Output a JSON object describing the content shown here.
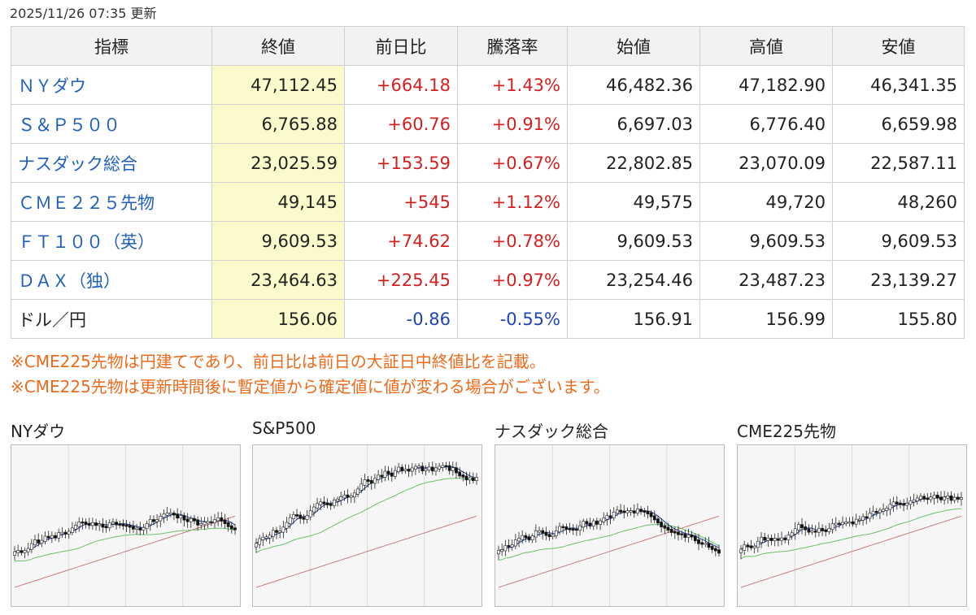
{
  "updated": "2025/11/26 07:35 更新",
  "headers": [
    "指標",
    "終値",
    "前日比",
    "騰落率",
    "始値",
    "高値",
    "安値"
  ],
  "rows": [
    {
      "name": "ＮＹダウ",
      "link": true,
      "close": "47,112.45",
      "change": "+664.18",
      "pct": "+1.43%",
      "dir": "up",
      "open": "46,482.36",
      "high": "47,182.90",
      "low": "46,341.35"
    },
    {
      "name": "Ｓ＆Ｐ５００",
      "link": true,
      "close": "6,765.88",
      "change": "+60.76",
      "pct": "+0.91%",
      "dir": "up",
      "open": "6,697.03",
      "high": "6,776.40",
      "low": "6,659.98"
    },
    {
      "name": "ナスダック総合",
      "link": true,
      "close": "23,025.59",
      "change": "+153.59",
      "pct": "+0.67%",
      "dir": "up",
      "open": "22,802.85",
      "high": "23,070.09",
      "low": "22,587.11"
    },
    {
      "name": "ＣＭＥ２２５先物",
      "link": true,
      "close": "49,145",
      "change": "+545",
      "pct": "+1.12%",
      "dir": "up",
      "open": "49,575",
      "high": "49,720",
      "low": "48,260"
    },
    {
      "name": "ＦＴ１００（英）",
      "link": true,
      "close": "9,609.53",
      "change": "+74.62",
      "pct": "+0.78%",
      "dir": "up",
      "open": "9,609.53",
      "high": "9,609.53",
      "low": "9,609.53"
    },
    {
      "name": "ＤＡＸ（独）",
      "link": true,
      "close": "23,464.63",
      "change": "+225.45",
      "pct": "+0.97%",
      "dir": "up",
      "open": "23,254.46",
      "high": "23,487.23",
      "low": "23,139.27"
    },
    {
      "name": "ドル／円",
      "link": false,
      "close": "156.06",
      "change": "-0.86",
      "pct": "-0.55%",
      "dir": "down",
      "open": "156.91",
      "high": "156.99",
      "low": "155.80"
    }
  ],
  "notes": [
    "※CME225先物は円建てであり、前日比は前日の大証日中終値比を記載。",
    "※CME225先物は更新時間後に暫定値から確定値に値が変わる場合がございます。"
  ],
  "charts": [
    {
      "title": "NYダウ"
    },
    {
      "title": "S&P500"
    },
    {
      "title": "ナスダック総合"
    },
    {
      "title": "CME225先物"
    }
  ],
  "colors": {
    "up": "#d51f1f",
    "down": "#1f45b5",
    "link": "#1f5fbf",
    "note": "#ee6a1a",
    "close_bg": "#fafacb",
    "ma_short": "#1a3f8f",
    "ma_mid": "#6bbf6b",
    "ma_long": "#c97b7b"
  }
}
